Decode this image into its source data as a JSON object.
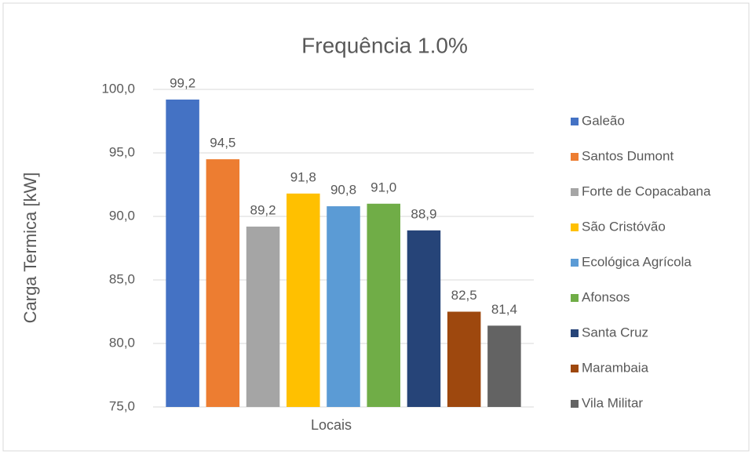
{
  "chart_data": {
    "type": "bar",
    "title": "Frequência 1.0%",
    "y_label": "Carga Termica [kW]",
    "x_label": "Locais",
    "ylim": [
      75,
      100
    ],
    "yticks": [
      {
        "value": 75,
        "label": "75,0"
      },
      {
        "value": 80,
        "label": "80,0"
      },
      {
        "value": 85,
        "label": "85,0"
      },
      {
        "value": 90,
        "label": "90,0"
      },
      {
        "value": 95,
        "label": "95,0"
      },
      {
        "value": 100,
        "label": "100,0"
      }
    ],
    "grid": true,
    "legend": "right",
    "series": [
      {
        "name": "Galeão",
        "color": "#4472c4",
        "values": [
          99.2
        ],
        "value_labels": [
          "99,2"
        ]
      },
      {
        "name": "Santos Dumont",
        "color": "#ed7d31",
        "values": [
          94.5
        ],
        "value_labels": [
          "94,5"
        ]
      },
      {
        "name": "Forte de Copacabana",
        "color": "#a5a5a5",
        "values": [
          89.2
        ],
        "value_labels": [
          "89,2"
        ]
      },
      {
        "name": "São Cristóvão",
        "color": "#ffc000",
        "values": [
          91.8
        ],
        "value_labels": [
          "91,8"
        ]
      },
      {
        "name": "Ecológica  Agrícola",
        "color": "#5b9bd5",
        "values": [
          90.8
        ],
        "value_labels": [
          "90,8"
        ]
      },
      {
        "name": "Afonsos",
        "color": "#70ad47",
        "values": [
          91.0
        ],
        "value_labels": [
          "91,0"
        ]
      },
      {
        "name": "Santa Cruz",
        "color": "#264478",
        "values": [
          88.9
        ],
        "value_labels": [
          "88,9"
        ]
      },
      {
        "name": "Marambaia",
        "color": "#9e480e",
        "values": [
          82.5
        ],
        "value_labels": [
          "82,5"
        ]
      },
      {
        "name": "Vila Militar",
        "color": "#636363",
        "values": [
          81.4
        ],
        "value_labels": [
          "81,4"
        ]
      }
    ]
  }
}
